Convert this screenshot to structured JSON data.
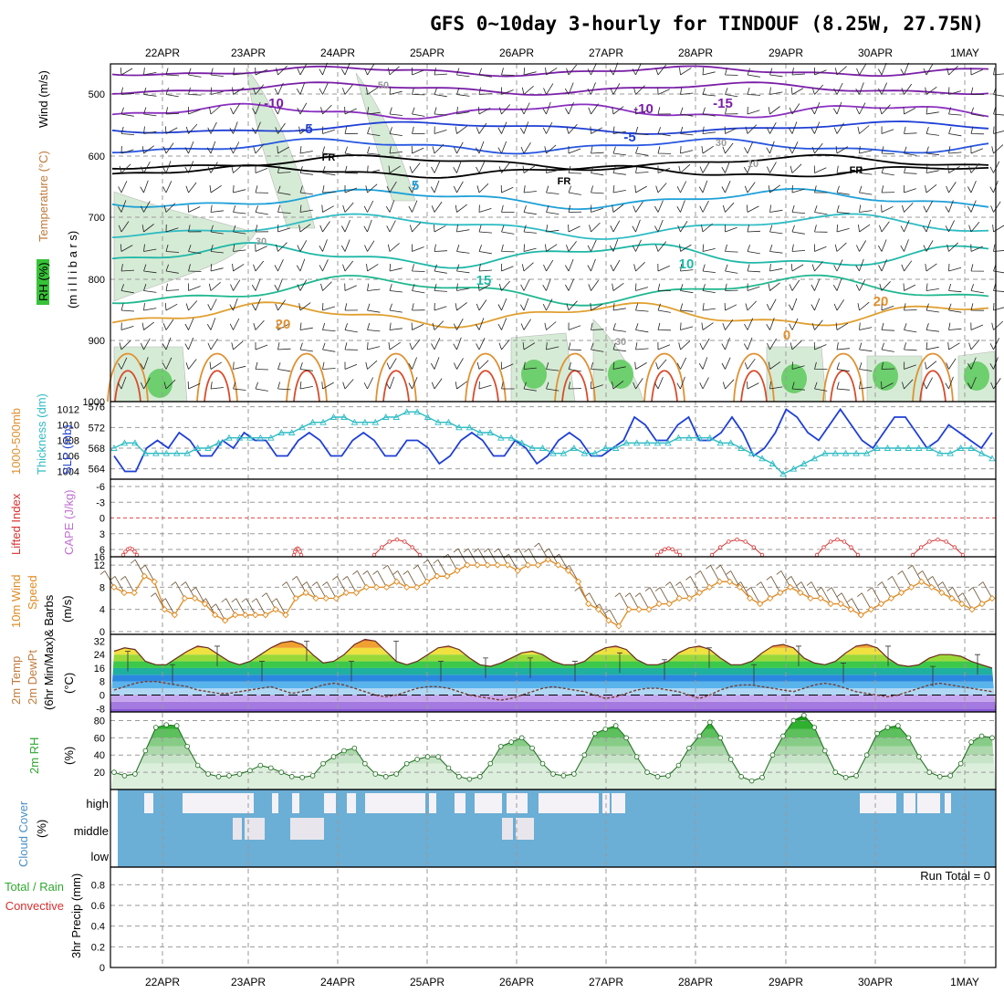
{
  "title": "GFS 0~10day 3-hourly for TINDOUF (8.25W, 27.75N)",
  "day_labels": [
    "22APR",
    "23APR",
    "24APR",
    "25APR",
    "26APR",
    "27APR",
    "28APR",
    "29APR",
    "30APR",
    "1MAY"
  ],
  "colors": {
    "blue_line": "#1f3fd6",
    "cyan_line": "#2fbcc4",
    "orange": "#e08a20",
    "lifted": "#d83030",
    "cloud_bg": "#6baed6",
    "cloud_white": "#f4f2f7"
  },
  "panels": {
    "upper": {
      "ylabel_wind": "Wind (m/s)",
      "ylabel_temp": "Temperature (°C)",
      "ylabel_rh": "RH (%)",
      "ylabel_mb": "(m i l l i b a r s)",
      "ticks": [
        "500",
        "600",
        "700",
        "800",
        "900",
        "1000"
      ],
      "contour_labels": [
        "-10",
        "-15",
        "-10",
        "-5",
        "-5",
        "FR",
        "FR",
        "FR",
        "5",
        "10",
        "15",
        "20",
        "20",
        "0",
        "50",
        "30",
        "30",
        "30",
        "10"
      ]
    },
    "slp": {
      "ylabel_slp": "SLP (mb)",
      "ylabel_thk": "1000-500mb Thickness (dm)",
      "ticks_left": [
        "576",
        "572",
        "568",
        "564"
      ],
      "ticks_right": [
        "1012",
        "1010",
        "1008",
        "1006",
        "1004"
      ]
    },
    "cape": {
      "ylabel_li": "Lifted Index",
      "ylabel_cape": "CAPE (J/kg)",
      "ticks": [
        "-6",
        "-3",
        "0",
        "3",
        "6"
      ],
      "bottom_tick": "16"
    },
    "wind10": {
      "ylabel1": "10m Wind",
      "ylabel2": "Speed",
      "ylabel3": "& Barbs",
      "ylabel4": "(m/s)",
      "ticks": [
        "12",
        "8",
        "4",
        "0"
      ]
    },
    "temp2m": {
      "ylabel1": "2m Temp",
      "ylabel2": "2m DewPt",
      "ylabel3": "(6hr Min/Max)",
      "ylabel4": "(°C)",
      "ticks": [
        "32",
        "24",
        "16",
        "8",
        "0",
        "-8"
      ]
    },
    "rh2m": {
      "ylabel1": "2m RH",
      "ylabel2": "(%)",
      "ticks": [
        "80",
        "60",
        "40",
        "20"
      ]
    },
    "cloud": {
      "ylabel1": "Cloud Cover",
      "ylabel2": "(%)",
      "levels": [
        "high",
        "middle",
        "low"
      ]
    },
    "precip": {
      "ylabel1": "Total / Rain",
      "ylabel2": "Convective",
      "ylabel3": "3hr Precip (mm)",
      "ticks": [
        "0.8",
        "0.6",
        "0.4",
        "0.2",
        "0"
      ],
      "run_total": "Run Total = 0"
    }
  },
  "chart_data": [
    {
      "type": "line",
      "name": "slp",
      "ylabel": "SLP (mb)",
      "ylim": [
        1003,
        1013
      ],
      "values": [
        1006,
        1004,
        1004,
        1007,
        1008,
        1007,
        1009,
        1008,
        1006,
        1006,
        1008,
        1007,
        1009,
        1008,
        1008,
        1006,
        1006,
        1008,
        1009,
        1008,
        1006,
        1006,
        1008,
        1009,
        1008,
        1006,
        1006,
        1008,
        1008,
        1007,
        1005,
        1006,
        1008,
        1009,
        1008,
        1006,
        1006,
        1008,
        1007,
        1005,
        1006,
        1008,
        1009,
        1008,
        1006,
        1006,
        1007,
        1008,
        1011,
        1010,
        1008,
        1008,
        1010,
        1011,
        1008,
        1008,
        1009,
        1011,
        1009,
        1006,
        1007,
        1009,
        1012,
        1011,
        1009,
        1008,
        1010,
        1012,
        1010,
        1008,
        1007,
        1009,
        1011,
        1011,
        1009,
        1007,
        1008,
        1010,
        1009,
        1008,
        1007,
        1009
      ]
    },
    {
      "type": "line",
      "name": "thickness",
      "ylabel": "1000-500mb Thickness (dm)",
      "ylim": [
        562,
        577
      ],
      "values": [
        568,
        569,
        569,
        567,
        567,
        567,
        567,
        567,
        568,
        568,
        569,
        570,
        570,
        570,
        570,
        570,
        571,
        571,
        572,
        573,
        573,
        574,
        574,
        573,
        573,
        573,
        574,
        574,
        575,
        575,
        574,
        573,
        573,
        572,
        572,
        571,
        571,
        570,
        570,
        569,
        568,
        568,
        567,
        567,
        568,
        567,
        567,
        568,
        568,
        569,
        569,
        569,
        569,
        569,
        570,
        570,
        570,
        570,
        569,
        569,
        568,
        567,
        566,
        565,
        563,
        564,
        565,
        566,
        567,
        567,
        567,
        567,
        567,
        568,
        568,
        568,
        568,
        568,
        568,
        567,
        567,
        568,
        568,
        567,
        566
      ]
    },
    {
      "type": "line",
      "name": "lifted_index",
      "ylabel": "Lifted Index",
      "ylim": [
        -6,
        6
      ]
    },
    {
      "type": "line",
      "name": "wind10m_speed",
      "ylabel": "Speed (m/s)",
      "ylim": [
        0,
        13
      ],
      "values": [
        8,
        7,
        7,
        10,
        9,
        4,
        3,
        6,
        6,
        5,
        3,
        2,
        3,
        3,
        3,
        3,
        4,
        3,
        6,
        7,
        6,
        6,
        6,
        7,
        7,
        8,
        8,
        8,
        9,
        8,
        8,
        9,
        10,
        10,
        11,
        12,
        12,
        12,
        12,
        12,
        11,
        12,
        12,
        13,
        12,
        11,
        9,
        5,
        4,
        2,
        1,
        4,
        4,
        4,
        5,
        5,
        6,
        6,
        7,
        8,
        9,
        9,
        8,
        6,
        5,
        6,
        7,
        8,
        7,
        6,
        6,
        5,
        5,
        4,
        3,
        4,
        5,
        6,
        7,
        8,
        9,
        8,
        7,
        6,
        5,
        4,
        5,
        6
      ]
    },
    {
      "type": "line",
      "name": "temp2m",
      "ylabel": "2m Temp (°C)",
      "ylim": [
        -10,
        36
      ],
      "values": [
        26,
        28,
        27,
        20,
        18,
        18,
        22,
        26,
        29,
        28,
        24,
        20,
        18,
        20,
        24,
        28,
        31,
        32,
        30,
        24,
        19,
        20,
        24,
        30,
        33,
        32,
        26,
        20,
        18,
        20,
        24,
        28,
        29,
        27,
        22,
        18,
        17,
        19,
        22,
        25,
        26,
        24,
        20,
        18,
        18,
        20,
        25,
        28,
        29,
        27,
        21,
        18,
        18,
        20,
        25,
        28,
        29,
        27,
        22,
        18,
        18,
        20,
        25,
        29,
        30,
        28,
        22,
        19,
        18,
        20,
        25,
        29,
        30,
        28,
        22,
        18,
        17,
        18,
        22,
        24,
        24,
        23,
        20,
        18,
        16
      ]
    },
    {
      "type": "line",
      "name": "dewpt2m",
      "ylabel": "2m DewPt (°C)",
      "ylim": [
        -10,
        36
      ],
      "values": [
        3,
        5,
        7,
        8,
        8,
        7,
        6,
        5,
        3,
        2,
        1,
        1,
        2,
        3,
        4,
        5,
        3,
        1,
        2,
        4,
        6,
        7,
        6,
        4,
        2,
        0,
        -1,
        0,
        2,
        4,
        5,
        5,
        4,
        2,
        0,
        -1,
        -2,
        -3,
        -2,
        0,
        2,
        4,
        5,
        4,
        3,
        2,
        0,
        -2,
        -1,
        1,
        3,
        4,
        4,
        3,
        2,
        0,
        -2,
        0,
        3,
        5,
        6,
        6,
        5,
        4,
        3,
        2,
        4,
        6,
        7,
        6,
        4,
        2,
        1,
        0,
        -1,
        0,
        2,
        4,
        6,
        7,
        6,
        5,
        4,
        3,
        2
      ]
    },
    {
      "type": "area",
      "name": "rh2m",
      "ylabel": "2m RH (%)",
      "ylim": [
        0,
        90
      ],
      "values": [
        20,
        16,
        18,
        45,
        72,
        75,
        74,
        50,
        28,
        18,
        15,
        16,
        18,
        22,
        28,
        25,
        20,
        15,
        14,
        16,
        30,
        38,
        45,
        48,
        30,
        18,
        15,
        18,
        30,
        35,
        38,
        38,
        25,
        15,
        12,
        15,
        30,
        50,
        55,
        60,
        48,
        30,
        18,
        16,
        18,
        40,
        65,
        70,
        74,
        60,
        38,
        20,
        15,
        16,
        28,
        48,
        62,
        78,
        60,
        35,
        15,
        10,
        14,
        40,
        62,
        80,
        86,
        72,
        45,
        20,
        14,
        16,
        40,
        65,
        72,
        74,
        60,
        38,
        20,
        15,
        16,
        30,
        55,
        62,
        60
      ]
    },
    {
      "type": "bar",
      "name": "precip_3hr",
      "ylabel": "3hr Precip (mm)",
      "ylim": [
        0,
        0.9
      ],
      "run_total": 0
    }
  ]
}
